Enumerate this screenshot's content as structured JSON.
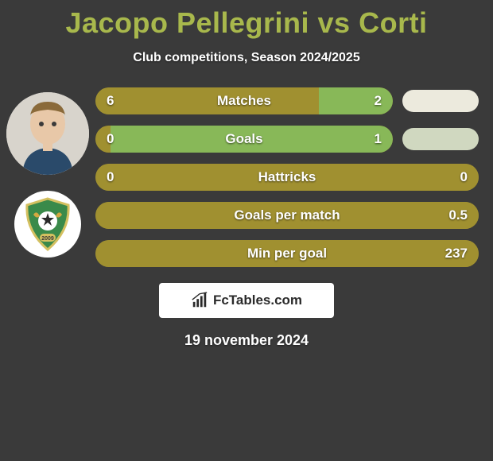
{
  "title": "Jacopo Pellegrini vs Corti",
  "subtitle": "Club competitions, Season 2024/2025",
  "date": "19 november 2024",
  "footer_label": "FcTables.com",
  "colors": {
    "background": "#3a3a3a",
    "title": "#a8b84c",
    "text": "#ffffff",
    "pill_base": "#a09030",
    "pill_alt": "#88b858",
    "side_pill1": "#eceadd",
    "side_pill2": "#d0d8c0",
    "footer_box": "#ffffff"
  },
  "pill": {
    "height": 34,
    "radius": 17,
    "label_fontsize": 17
  },
  "stats": [
    {
      "label": "Matches",
      "left_value": "6",
      "right_value": "2",
      "left_pct": 75,
      "right_pct": 25,
      "left_color": "#a09030",
      "right_color": "#88b858",
      "has_side_pill": true,
      "side_pill_color": "#eceadd"
    },
    {
      "label": "Goals",
      "left_value": "0",
      "right_value": "1",
      "left_pct": 5,
      "right_pct": 95,
      "left_color": "#a09030",
      "right_color": "#88b858",
      "has_side_pill": true,
      "side_pill_color": "#d0d8c0"
    },
    {
      "label": "Hattricks",
      "left_value": "0",
      "right_value": "0",
      "left_pct": 100,
      "right_pct": 0,
      "left_color": "#a09030",
      "right_color": "#a09030",
      "has_side_pill": false
    },
    {
      "label": "Goals per match",
      "left_value": "",
      "right_value": "0.5",
      "left_pct": 100,
      "right_pct": 0,
      "left_color": "#a09030",
      "right_color": "#a09030",
      "has_side_pill": false
    },
    {
      "label": "Min per goal",
      "left_value": "",
      "right_value": "237",
      "left_pct": 100,
      "right_pct": 0,
      "left_color": "#a09030",
      "right_color": "#a09030",
      "has_side_pill": false
    }
  ]
}
